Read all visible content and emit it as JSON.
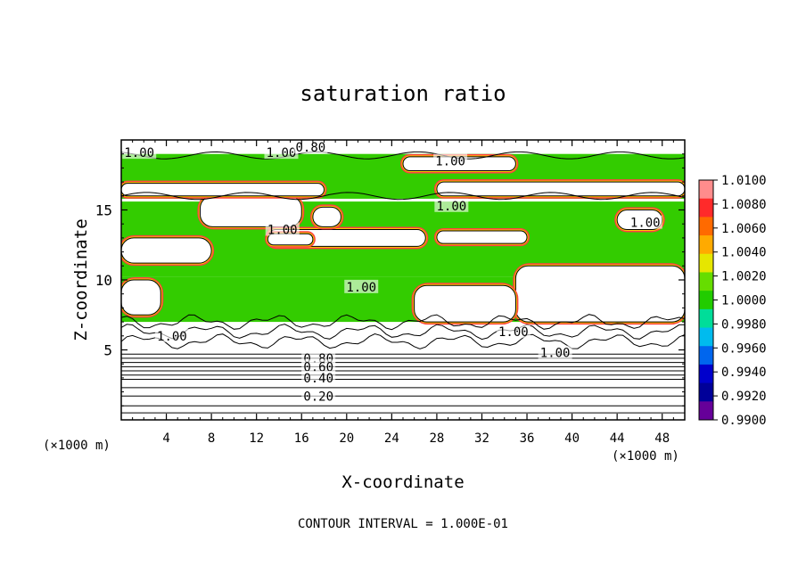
{
  "chart_data": {
    "type": "heatmap",
    "title": "saturation ratio",
    "xlabel": "X-coordinate",
    "ylabel": "Z-coordinate",
    "x_units": "(×1000 m)",
    "x_units_right": "(×1000 m)",
    "footer": "CONTOUR INTERVAL = 1.000E-01",
    "xlim": [
      0,
      50
    ],
    "ylim": [
      0,
      20
    ],
    "x_ticks": [
      4,
      8,
      12,
      16,
      20,
      24,
      28,
      32,
      36,
      40,
      44,
      48
    ],
    "x_tick_labels": [
      "4",
      "8",
      "12",
      "16",
      "20",
      "24",
      "28",
      "32",
      "36",
      "40",
      "44",
      "48"
    ],
    "y_ticks": [
      5,
      10,
      15
    ],
    "y_tick_labels": [
      "5",
      "10",
      "15"
    ],
    "colorbar": {
      "labels": [
        "1.0100",
        "1.0080",
        "1.0060",
        "1.0040",
        "1.0020",
        "1.0000",
        "0.9980",
        "0.9960",
        "0.9940",
        "0.9920",
        "0.9900"
      ],
      "colors": [
        "#ff8c8c",
        "#ff2a2a",
        "#ff6a00",
        "#ffaa00",
        "#e6e600",
        "#66dd00",
        "#22cc00",
        "#00dd99",
        "#00bbee",
        "#0066ee",
        "#0000cc",
        "#000099",
        "#660099"
      ]
    },
    "contour_labels": [
      {
        "text": "1.00",
        "x": 1.6,
        "z": 19.1
      },
      {
        "text": "1.00",
        "x": 14.2,
        "z": 19.1
      },
      {
        "text": "0.80",
        "x": 16.8,
        "z": 19.5
      },
      {
        "text": "1.00",
        "x": 29.2,
        "z": 18.5
      },
      {
        "text": "1.00",
        "x": 29.3,
        "z": 15.3
      },
      {
        "text": "1.00",
        "x": 46.5,
        "z": 14.1
      },
      {
        "text": "1.00",
        "x": 14.3,
        "z": 13.6
      },
      {
        "text": "1.00",
        "x": 21.3,
        "z": 9.5
      },
      {
        "text": "1.00",
        "x": 4.5,
        "z": 6.0
      },
      {
        "text": "1.00",
        "x": 34.8,
        "z": 6.3
      },
      {
        "text": "1.00",
        "x": 38.5,
        "z": 4.8
      },
      {
        "text": "0.80",
        "x": 17.5,
        "z": 4.4
      },
      {
        "text": "0.60",
        "x": 17.5,
        "z": 3.8
      },
      {
        "text": "0.40",
        "x": 17.5,
        "z": 3.0
      },
      {
        "text": "0.20",
        "x": 17.5,
        "z": 1.7
      }
    ],
    "supersaturated_regions": [
      {
        "x": [
          0,
          50
        ],
        "z": [
          15.8,
          19.0
        ]
      },
      {
        "x": [
          0,
          50
        ],
        "z": [
          10.2,
          15.6
        ]
      },
      {
        "x": [
          0,
          50
        ],
        "z": [
          7.0,
          10.2
        ]
      }
    ],
    "clear_regions": [
      {
        "x": [
          7.0,
          16.0
        ],
        "z": [
          13.8,
          16.0
        ]
      },
      {
        "x": [
          0,
          8.0
        ],
        "z": [
          11.2,
          13.0
        ]
      },
      {
        "x": [
          13.0,
          27.0
        ],
        "z": [
          12.4,
          13.6
        ]
      },
      {
        "x": [
          28.0,
          36.0
        ],
        "z": [
          12.6,
          13.5
        ]
      },
      {
        "x": [
          25.0,
          35.0
        ],
        "z": [
          17.8,
          18.8
        ]
      },
      {
        "x": [
          0,
          18.0
        ],
        "z": [
          16.0,
          16.9
        ]
      },
      {
        "x": [
          28.0,
          50.0
        ],
        "z": [
          16.0,
          17.0
        ]
      },
      {
        "x": [
          13.0,
          17.0
        ],
        "z": [
          12.5,
          13.3
        ]
      },
      {
        "x": [
          0,
          3.5
        ],
        "z": [
          7.5,
          10.0
        ]
      },
      {
        "x": [
          35.0,
          50.0
        ],
        "z": [
          7.0,
          11.0
        ]
      },
      {
        "x": [
          26.0,
          35.0
        ],
        "z": [
          7.0,
          9.6
        ]
      },
      {
        "x": [
          17.0,
          19.5
        ],
        "z": [
          13.8,
          15.2
        ]
      },
      {
        "x": [
          44.0,
          48.0
        ],
        "z": [
          13.6,
          15.0
        ]
      }
    ],
    "stratified_contour_levels": [
      0.5,
      1.0,
      1.7,
      2.3,
      2.9,
      3.2,
      3.5,
      3.8,
      4.1,
      4.4,
      4.7
    ],
    "grid": false,
    "legend_placement": "right"
  }
}
